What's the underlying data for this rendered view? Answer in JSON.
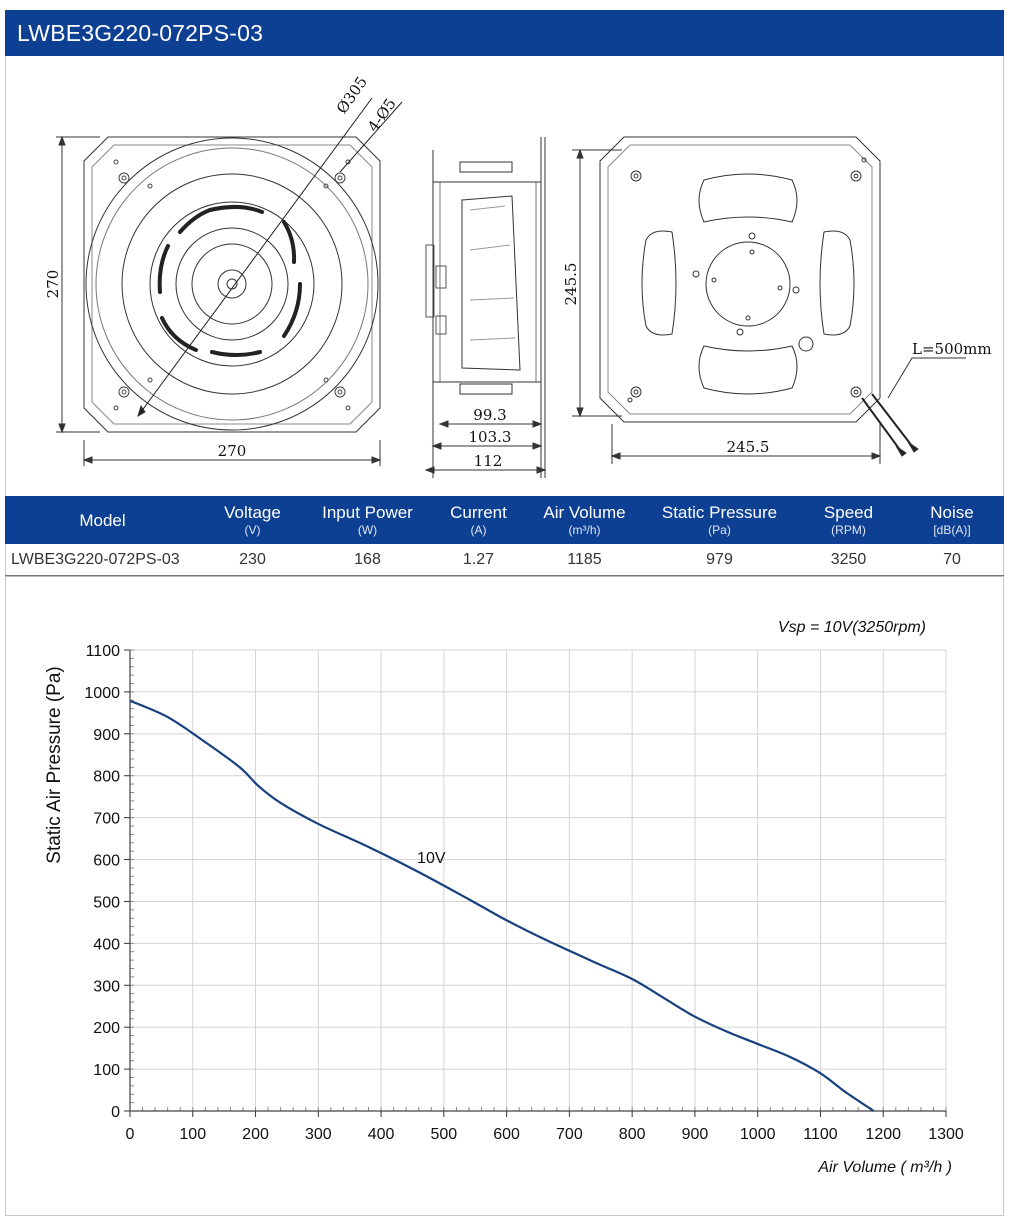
{
  "title": "LWBE3G220-072PS-03",
  "drawing": {
    "front_width": "270",
    "front_height": "270",
    "diameter": "Ø305",
    "holes": "4-Ø5",
    "side_dims": [
      "99.3",
      "103.3",
      "112"
    ],
    "rear_width": "245.5",
    "rear_height": "245.5",
    "cable_length": "L=500mm"
  },
  "specs": {
    "headers": [
      {
        "label": "Model",
        "unit": ""
      },
      {
        "label": "Voltage",
        "unit": "(V)"
      },
      {
        "label": "Input Power",
        "unit": "(W)"
      },
      {
        "label": "Current",
        "unit": "(A)"
      },
      {
        "label": "Air Volume",
        "unit": "(m³/h)"
      },
      {
        "label": "Static Pressure",
        "unit": "(Pa)"
      },
      {
        "label": "Speed",
        "unit": "(RPM)"
      },
      {
        "label": "Noise",
        "unit": "[dB(A)]"
      }
    ],
    "row": [
      "LWBE3G220-072PS-03",
      "230",
      "168",
      "1.27",
      "1185",
      "979",
      "3250",
      "70"
    ]
  },
  "colors": {
    "brand_blue": "#0d3f93",
    "curve": "#16407f",
    "grid": "#d4d4d4"
  },
  "chart_data": {
    "type": "line",
    "annotation": "Vsp = 10V(3250rpm)",
    "xlabel": "Air Volume ( m³/h )",
    "ylabel": "Static Air Pressure  (Pa)",
    "xlim": [
      0,
      1300
    ],
    "ylim": [
      0,
      1100
    ],
    "xticks": [
      0,
      100,
      200,
      300,
      400,
      500,
      600,
      700,
      800,
      900,
      1000,
      1100,
      1200,
      1300
    ],
    "yticks": [
      0,
      100,
      200,
      300,
      400,
      500,
      600,
      700,
      800,
      900,
      1000,
      1100
    ],
    "grid": true,
    "series": [
      {
        "name": "10V",
        "x": [
          0,
          60,
          120,
          175,
          205,
          240,
          300,
          380,
          460,
          540,
          600,
          660,
          740,
          800,
          850,
          900,
          950,
          1000,
          1050,
          1100,
          1140,
          1185
        ],
        "y": [
          979,
          940,
          880,
          820,
          775,
          735,
          685,
          630,
          570,
          505,
          455,
          410,
          355,
          315,
          270,
          225,
          190,
          160,
          130,
          90,
          45,
          0
        ]
      }
    ]
  }
}
